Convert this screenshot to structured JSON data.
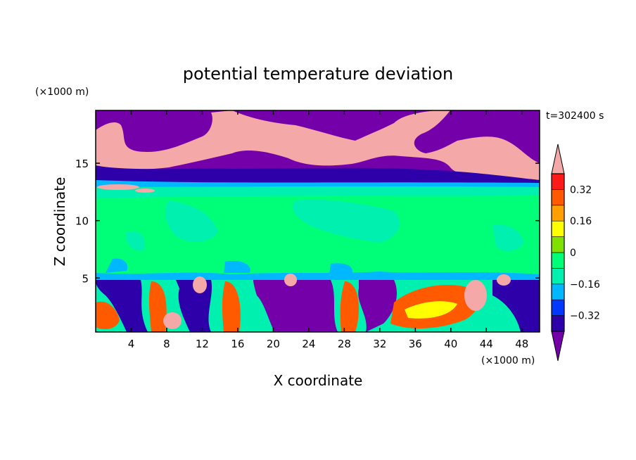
{
  "chart_data": {
    "type": "heatmap",
    "title": "potential temperature deviation",
    "xlabel": "X coordinate",
    "ylabel": "Z coordinate",
    "x_unit": "(×1000 m)",
    "y_unit": "(×1000 m)",
    "time_label": "t=302400 s",
    "xlim": [
      0,
      50
    ],
    "ylim": [
      0.3,
      19.6
    ],
    "xticks": [
      4,
      8,
      12,
      16,
      20,
      24,
      28,
      32,
      36,
      40,
      44,
      48
    ],
    "yticks": [
      5,
      10,
      15
    ],
    "colorbar": {
      "levels": [
        -0.4,
        -0.32,
        -0.24,
        -0.16,
        -0.08,
        0,
        0.08,
        0.16,
        0.24,
        0.32,
        0.4
      ],
      "tick_labels": [
        "0.32",
        "0.16",
        "0",
        "−0.16",
        "−0.32"
      ],
      "tick_values": [
        0.32,
        0.16,
        0,
        -0.16,
        -0.32
      ],
      "colors": [
        "#7300a8",
        "#2e00aa",
        "#0038ff",
        "#00b8ff",
        "#00f0b0",
        "#00ff78",
        "#80e000",
        "#ffff00",
        "#ffa000",
        "#ff5a00",
        "#ff1a1a",
        "#f5a8a8"
      ],
      "extend": "both"
    },
    "bands": [
      {
        "z_range": [
          15.7,
          19.6
        ],
        "description_value": -0.45
      },
      {
        "z_range": [
          14.6,
          15.7
        ],
        "description_value": 0.45
      },
      {
        "z_range": [
          13.5,
          14.6
        ],
        "description_value": -0.36
      },
      {
        "z_range": [
          4.9,
          13.0
        ],
        "description_value": 0.02
      },
      {
        "z_range": [
          0.3,
          4.9
        ],
        "description_value": "alternating"
      }
    ]
  }
}
